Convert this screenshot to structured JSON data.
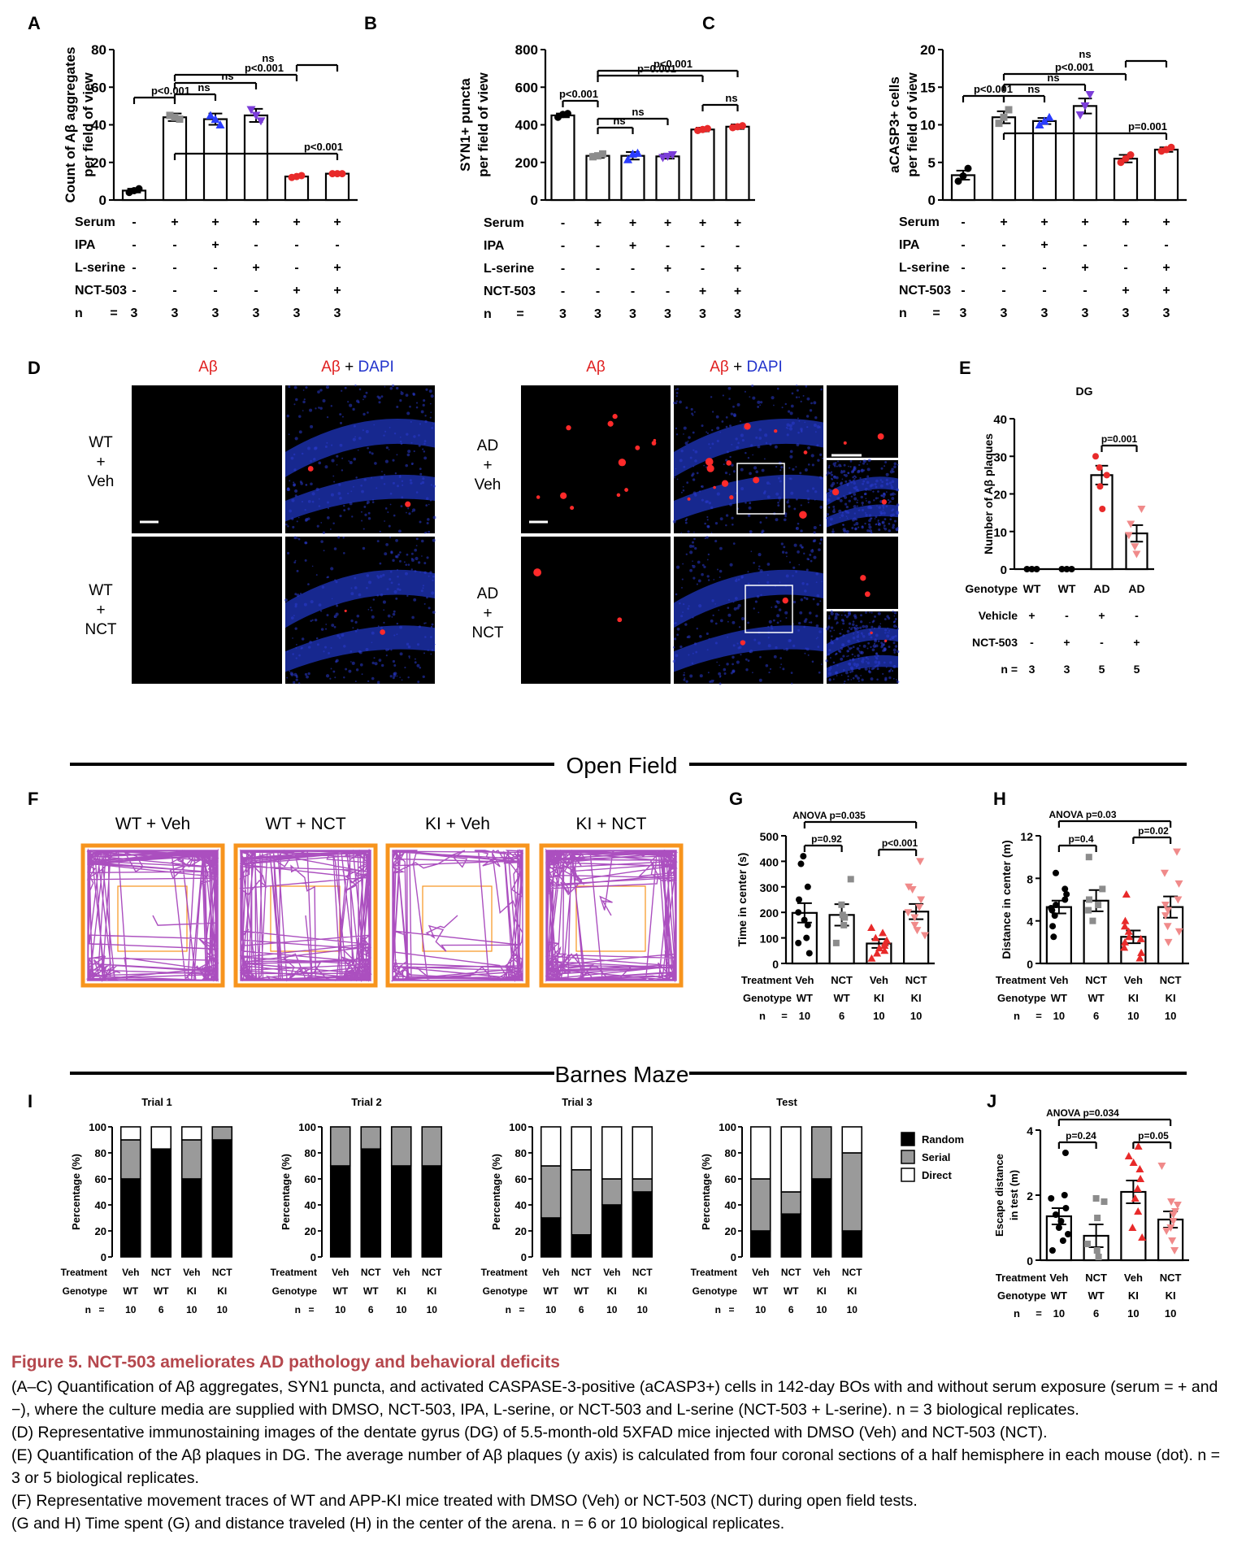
{
  "panel_letters": [
    "A",
    "B",
    "C",
    "D",
    "E",
    "F",
    "G",
    "H",
    "I",
    "J"
  ],
  "colors": {
    "black": "#000000",
    "gray": "#8c8c8c",
    "blue": "#2a3cff",
    "purple": "#7b3dd8",
    "red": "#e82a2a",
    "pink": "#f08a8a",
    "orange": "#f7941d",
    "trace": "#a23cb8",
    "caption_red": "#b5474d",
    "dapi_blue": "#2233cc"
  },
  "rowtables": {
    "ABC": {
      "rows": [
        {
          "label": "Serum",
          "values": [
            "-",
            "+",
            "+",
            "+",
            "+",
            "+"
          ]
        },
        {
          "label": "IPA",
          "values": [
            "-",
            "-",
            "+",
            "-",
            "-",
            "-"
          ]
        },
        {
          "label": "L-serine",
          "values": [
            "-",
            "-",
            "-",
            "+",
            "-",
            "+"
          ]
        },
        {
          "label": "NCT-503",
          "values": [
            "-",
            "-",
            "-",
            "-",
            "+",
            "+"
          ]
        }
      ],
      "n_label": "n",
      "eq": "=",
      "n_values": [
        "3",
        "3",
        "3",
        "3",
        "3",
        "3"
      ]
    },
    "E": {
      "rows": [
        {
          "label": "Genotype",
          "values": [
            "WT",
            "WT",
            "AD",
            "AD"
          ]
        },
        {
          "label": "Vehicle",
          "values": [
            "+",
            "-",
            "+",
            "-"
          ]
        },
        {
          "label": "NCT-503",
          "values": [
            "-",
            "+",
            "-",
            "+"
          ]
        }
      ],
      "n_label": "n =",
      "n_values": [
        "3",
        "3",
        "5",
        "5"
      ]
    },
    "GH": {
      "rows": [
        {
          "label": "Treatment",
          "values": [
            "Veh",
            "NCT",
            "Veh",
            "NCT"
          ]
        },
        {
          "label": "Genotype",
          "values": [
            "WT",
            "WT",
            "KI",
            "KI"
          ]
        }
      ],
      "n_label": "n",
      "eq": "=",
      "n_values": [
        "10",
        "6",
        "10",
        "10"
      ]
    }
  },
  "panel_D": {
    "left_header_1": "Aβ",
    "left_header_2a": "Aβ",
    "left_header_2b": " + ",
    "left_header_2c": "DAPI",
    "row_labels_left": [
      [
        "WT",
        "+",
        "Veh"
      ],
      [
        "WT",
        "+",
        "NCT"
      ]
    ],
    "row_labels_right": [
      [
        "AD",
        "+",
        "Veh"
      ],
      [
        "AD",
        "+",
        "NCT"
      ]
    ]
  },
  "section_titles": {
    "open_field": "Open Field",
    "barnes": "Barnes Maze"
  },
  "panel_F": {
    "titles": [
      "WT + Veh",
      "WT + NCT",
      "KI + Veh",
      "KI + NCT"
    ]
  },
  "chart_data": [
    {
      "id": "A",
      "type": "bar",
      "ylabel": "Count of Aβ aggregates per field of view",
      "ylabel_lines": [
        "Count of Aβ aggregates",
        "per field of view"
      ],
      "ylim": [
        0,
        80
      ],
      "ticks": [
        "0",
        "20",
        "40",
        "60",
        "80"
      ],
      "values": [
        5,
        44,
        43,
        45,
        12.5,
        14
      ],
      "errors": [
        1,
        2,
        3,
        3.5,
        0.5,
        0.8
      ],
      "points": [
        [
          4,
          5,
          6
        ],
        [
          45,
          44,
          43
        ],
        [
          45,
          43,
          40
        ],
        [
          48,
          45,
          42
        ],
        [
          12,
          12.5,
          13
        ],
        [
          14,
          14,
          14
        ]
      ],
      "point_colors": [
        "black",
        "gray",
        "blue",
        "purple",
        "red",
        "red"
      ],
      "annotations": [
        {
          "from": 0,
          "to": 1,
          "label": "p<0.001"
        },
        {
          "from": 1,
          "to": 2,
          "label": "ns"
        },
        {
          "from": 1,
          "to": 3,
          "label": "ns"
        },
        {
          "from": 1,
          "to": 4,
          "label": "p<0.001"
        },
        {
          "from": 1,
          "to": 5,
          "label": "p<0.001"
        },
        {
          "from": 4,
          "to": 5,
          "label": "ns"
        }
      ]
    },
    {
      "id": "B",
      "type": "bar",
      "ylabel": "SYN1+ puncta per field of view",
      "ylabel_lines": [
        "SYN1+ puncta",
        "per field of view"
      ],
      "ylim": [
        0,
        800
      ],
      "ticks": [
        "0",
        "200",
        "400",
        "600",
        "800"
      ],
      "values": [
        450,
        235,
        235,
        232,
        375,
        390
      ],
      "errors": [
        10,
        10,
        20,
        12,
        10,
        12
      ],
      "points": [
        [
          440,
          455,
          460
        ],
        [
          230,
          235,
          245
        ],
        [
          215,
          245,
          250
        ],
        [
          225,
          232,
          240
        ],
        [
          370,
          375,
          380
        ],
        [
          385,
          390,
          395
        ]
      ],
      "point_colors": [
        "black",
        "gray",
        "blue",
        "purple",
        "red",
        "red"
      ],
      "annotations": [
        {
          "from": 0,
          "to": 1,
          "label": "p<0.001"
        },
        {
          "from": 1,
          "to": 2,
          "label": "ns"
        },
        {
          "from": 1,
          "to": 3,
          "label": "ns"
        },
        {
          "from": 4,
          "to": 5,
          "label": "ns"
        },
        {
          "from": 1,
          "to": 4,
          "label": "p=0.001"
        },
        {
          "from": 1,
          "to": 5,
          "label": "p<0.001"
        }
      ]
    },
    {
      "id": "C",
      "type": "bar",
      "ylabel": "aCASP3+ cells per field of view",
      "ylabel_lines": [
        "aCASP3+ cells",
        "per field of view"
      ],
      "ylim": [
        0,
        20
      ],
      "ticks": [
        "0",
        "5",
        "10",
        "15",
        "20"
      ],
      "values": [
        3.3,
        11,
        10.5,
        12.5,
        5.5,
        6.7
      ],
      "errors": [
        0.6,
        0.8,
        0.4,
        1.0,
        0.5,
        0.3
      ],
      "points": [
        [
          2.5,
          3.2,
          4.2
        ],
        [
          10.2,
          11,
          12
        ],
        [
          10,
          10.5,
          11
        ],
        [
          11.3,
          12.5,
          14
        ],
        [
          5,
          5.5,
          6
        ],
        [
          6.5,
          6.7,
          7
        ]
      ],
      "point_colors": [
        "black",
        "gray",
        "blue",
        "purple",
        "red",
        "red"
      ],
      "annotations": [
        {
          "from": 0,
          "to": 1,
          "label": "p<0.001"
        },
        {
          "from": 1,
          "to": 2,
          "label": "ns"
        },
        {
          "from": 1,
          "to": 3,
          "label": "ns"
        },
        {
          "from": 1,
          "to": 4,
          "label": "p<0.001"
        },
        {
          "from": 1,
          "to": 5,
          "label": "p=0.001"
        },
        {
          "from": 4,
          "to": 5,
          "label": "ns"
        }
      ]
    },
    {
      "id": "E",
      "type": "bar",
      "title": "DG",
      "ylabel": "Number of Aβ plaques",
      "ylabel_lines": [
        "Number of Aβ plaques"
      ],
      "ylim": [
        0,
        40
      ],
      "ticks": [
        "0",
        "10",
        "20",
        "30",
        "40"
      ],
      "values": [
        0,
        0,
        25,
        9.5
      ],
      "errors": [
        0,
        0,
        2.5,
        2.2
      ],
      "points": [
        [
          0,
          0,
          0
        ],
        [
          0,
          0,
          0
        ],
        [
          16,
          22,
          25,
          27,
          30
        ],
        [
          4,
          6,
          9,
          12,
          16
        ]
      ],
      "point_colors": [
        "black",
        "black",
        "red",
        "pink"
      ],
      "annotations": [
        {
          "from": 2,
          "to": 3,
          "label": "p=0.001"
        }
      ]
    },
    {
      "id": "G",
      "type": "bar",
      "ylabel": "Time in center (s)",
      "ylabel_lines": [
        "Time in center (s)"
      ],
      "ylim": [
        0,
        500
      ],
      "ticks": [
        "0",
        "100",
        "200",
        "300",
        "400",
        "500"
      ],
      "values": [
        198,
        190,
        78,
        203
      ],
      "errors": [
        38,
        42,
        17,
        30
      ],
      "points": [
        [
          40,
          80,
          100,
          150,
          170,
          200,
          250,
          300,
          390,
          420
        ],
        [
          80,
          150,
          180,
          190,
          230,
          330
        ],
        [
          20,
          40,
          50,
          60,
          70,
          80,
          90,
          100,
          120,
          140
        ],
        [
          110,
          130,
          150,
          180,
          200,
          220,
          250,
          290,
          300,
          400
        ]
      ],
      "point_colors": [
        "black",
        "gray",
        "red",
        "pink"
      ],
      "annotations": [
        {
          "from": 0,
          "to": 1,
          "label": "p=0.92"
        },
        {
          "from": 2,
          "to": 3,
          "label": "p<0.001"
        },
        {
          "from": 0,
          "to": 3,
          "label": "ANOVA p=0.035",
          "level": 2
        }
      ]
    },
    {
      "id": "H",
      "type": "bar",
      "ylabel": "Distance in center (m)",
      "ylabel_lines": [
        "Distance in center (m)"
      ],
      "ylim": [
        0,
        12
      ],
      "ticks": [
        "0",
        "4",
        "8",
        "12"
      ],
      "values": [
        5.3,
        5.9,
        2.5,
        5.3
      ],
      "errors": [
        0.6,
        1.0,
        0.6,
        1.0
      ],
      "points": [
        [
          2.5,
          3.5,
          4.5,
          5,
          5.2,
          5.5,
          6,
          6.5,
          7,
          8.5
        ],
        [
          4,
          5,
          5.5,
          6,
          7,
          10
        ],
        [
          0.5,
          1,
          1.5,
          2,
          2.3,
          2.5,
          3,
          3.5,
          4,
          6.5
        ],
        [
          2,
          3,
          3.5,
          4.5,
          5,
          5.5,
          6,
          7.5,
          8.5,
          10.5
        ]
      ],
      "point_colors": [
        "black",
        "gray",
        "red",
        "pink"
      ],
      "annotations": [
        {
          "from": 0,
          "to": 1,
          "label": "p=0.4"
        },
        {
          "from": 2,
          "to": 3,
          "label": "p=0.02"
        },
        {
          "from": 0,
          "to": 3,
          "label": "ANOVA p=0.03",
          "level": 2
        }
      ]
    },
    {
      "id": "I",
      "type": "stacked_bar",
      "ylabel": "Percentage (%)",
      "ylim": [
        0,
        100
      ],
      "ticks": [
        "0",
        "20",
        "40",
        "60",
        "80",
        "100"
      ],
      "legend": [
        "Random",
        "Serial",
        "Direct"
      ],
      "panels": [
        {
          "title": "Trial 1",
          "random": [
            60,
            83,
            60,
            90
          ],
          "serial": [
            30,
            0,
            30,
            10
          ],
          "direct": [
            10,
            17,
            10,
            0
          ]
        },
        {
          "title": "Trial 2",
          "random": [
            70,
            83,
            70,
            70
          ],
          "serial": [
            30,
            17,
            30,
            30
          ],
          "direct": [
            0,
            0,
            0,
            0
          ]
        },
        {
          "title": "Trial 3",
          "random": [
            30,
            17,
            40,
            50
          ],
          "serial": [
            40,
            50,
            20,
            10
          ],
          "direct": [
            30,
            33,
            40,
            40
          ]
        },
        {
          "title": "Test",
          "random": [
            20,
            33,
            60,
            20
          ],
          "serial": [
            40,
            17,
            40,
            60
          ],
          "direct": [
            40,
            50,
            0,
            20
          ]
        }
      ],
      "row_labels": [
        "Treatment",
        "Genotype",
        "n",
        "="
      ],
      "treatment": [
        "Veh",
        "NCT",
        "Veh",
        "NCT"
      ],
      "genotype": [
        "WT",
        "WT",
        "KI",
        "KI"
      ],
      "n": [
        "10",
        "6",
        "10",
        "10"
      ]
    },
    {
      "id": "J",
      "type": "bar",
      "ylabel": "Escape distance in test (m)",
      "ylabel_lines": [
        "Escape distance",
        "in test (m)"
      ],
      "ylim": [
        0,
        4
      ],
      "ticks": [
        "0",
        "2",
        "4"
      ],
      "values": [
        1.35,
        0.75,
        2.1,
        1.25
      ],
      "errors": [
        0.25,
        0.35,
        0.35,
        0.25
      ],
      "points": [
        [
          0.3,
          0.6,
          0.8,
          1.0,
          1.2,
          1.4,
          1.6,
          1.9,
          2.0,
          3.3
        ],
        [
          0.1,
          0.3,
          0.5,
          1.3,
          1.8,
          1.9
        ],
        [
          0.7,
          1.0,
          1.5,
          1.9,
          2.2,
          2.5,
          2.8,
          3.0,
          3.2,
          3.5
        ],
        [
          0.3,
          0.6,
          0.9,
          1.0,
          1.2,
          1.4,
          1.5,
          1.7,
          1.8,
          2.9
        ]
      ],
      "point_colors": [
        "black",
        "gray",
        "red",
        "pink"
      ],
      "annotations": [
        {
          "from": 0,
          "to": 1,
          "label": "p=0.24"
        },
        {
          "from": 2,
          "to": 3,
          "label": "p=0.05"
        },
        {
          "from": 0,
          "to": 3,
          "label": "ANOVA p=0.034",
          "level": 2
        }
      ]
    }
  ],
  "caption": {
    "title": "Figure 5. NCT-503 ameliorates AD pathology and behavioral deficits",
    "lines": [
      "(A–C) Quantification of Aβ aggregates, SYN1 puncta, and activated CASPASE-3-positive (aCASP3+) cells in 142-day BOs with and without serum exposure (serum = + and −), where the culture media are supplied with DMSO, NCT-503, IPA, L-serine, or NCT-503 and L-serine (NCT-503 + L-serine). n = 3 biological replicates.",
      "(D) Representative immunostaining images of the dentate gyrus (DG) of 5.5-month-old 5XFAD mice injected with DMSO (Veh) and NCT-503 (NCT).",
      "(E) Quantification of the Aβ plaques in DG. The average number of Aβ plaques (y axis) is calculated from four coronal sections of a half hemisphere in each mouse (dot). n = 3 or 5 biological replicates.",
      "(F) Representative movement traces of WT and APP-KI mice treated with DMSO (Veh) or NCT-503 (NCT) during open field tests.",
      "(G and H) Time spent (G) and distance traveled (H) in the center of the arena. n = 6 or 10 biological replicates."
    ]
  }
}
